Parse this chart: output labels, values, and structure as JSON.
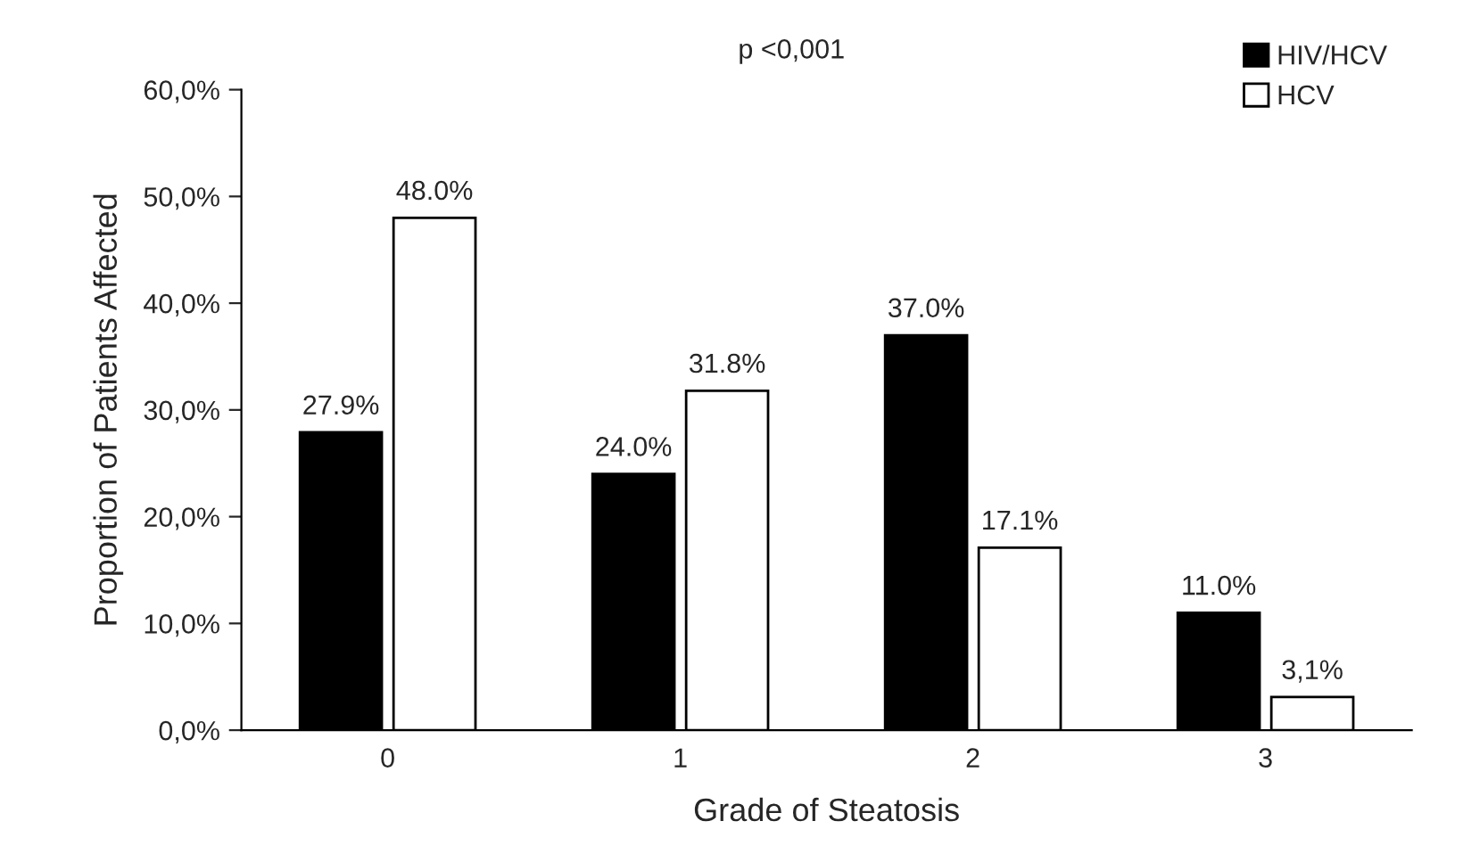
{
  "chart_data": {
    "type": "bar",
    "xlabel": "Grade of Steatosis",
    "ylabel": "Proportion of Patients Affected",
    "categories": [
      "0",
      "1",
      "2",
      "3"
    ],
    "series": [
      {
        "name": "HIV/HCV",
        "color": "#000000",
        "values": [
          27.9,
          24.0,
          37.0,
          11.0
        ],
        "value_labels": [
          "27.9%",
          "24.0%",
          "37.0%",
          "11.0%"
        ]
      },
      {
        "name": "HCV",
        "color": "#ffffff",
        "values": [
          48.0,
          31.8,
          17.1,
          3.1
        ],
        "value_labels": [
          "48.0%",
          "31.8%",
          "17.1%",
          "3,1%"
        ]
      }
    ],
    "ylim": [
      0,
      60
    ],
    "yticks": [
      {
        "value": 0,
        "label": "0,0%"
      },
      {
        "value": 10,
        "label": "10,0%"
      },
      {
        "value": 20,
        "label": "20,0%"
      },
      {
        "value": 30,
        "label": "30,0%"
      },
      {
        "value": 40,
        "label": "40,0%"
      },
      {
        "value": 50,
        "label": "50,0%"
      },
      {
        "value": 60,
        "label": "60,0%"
      }
    ],
    "annotations": [
      "p <0,001"
    ],
    "legend": "top right",
    "grid": false
  }
}
